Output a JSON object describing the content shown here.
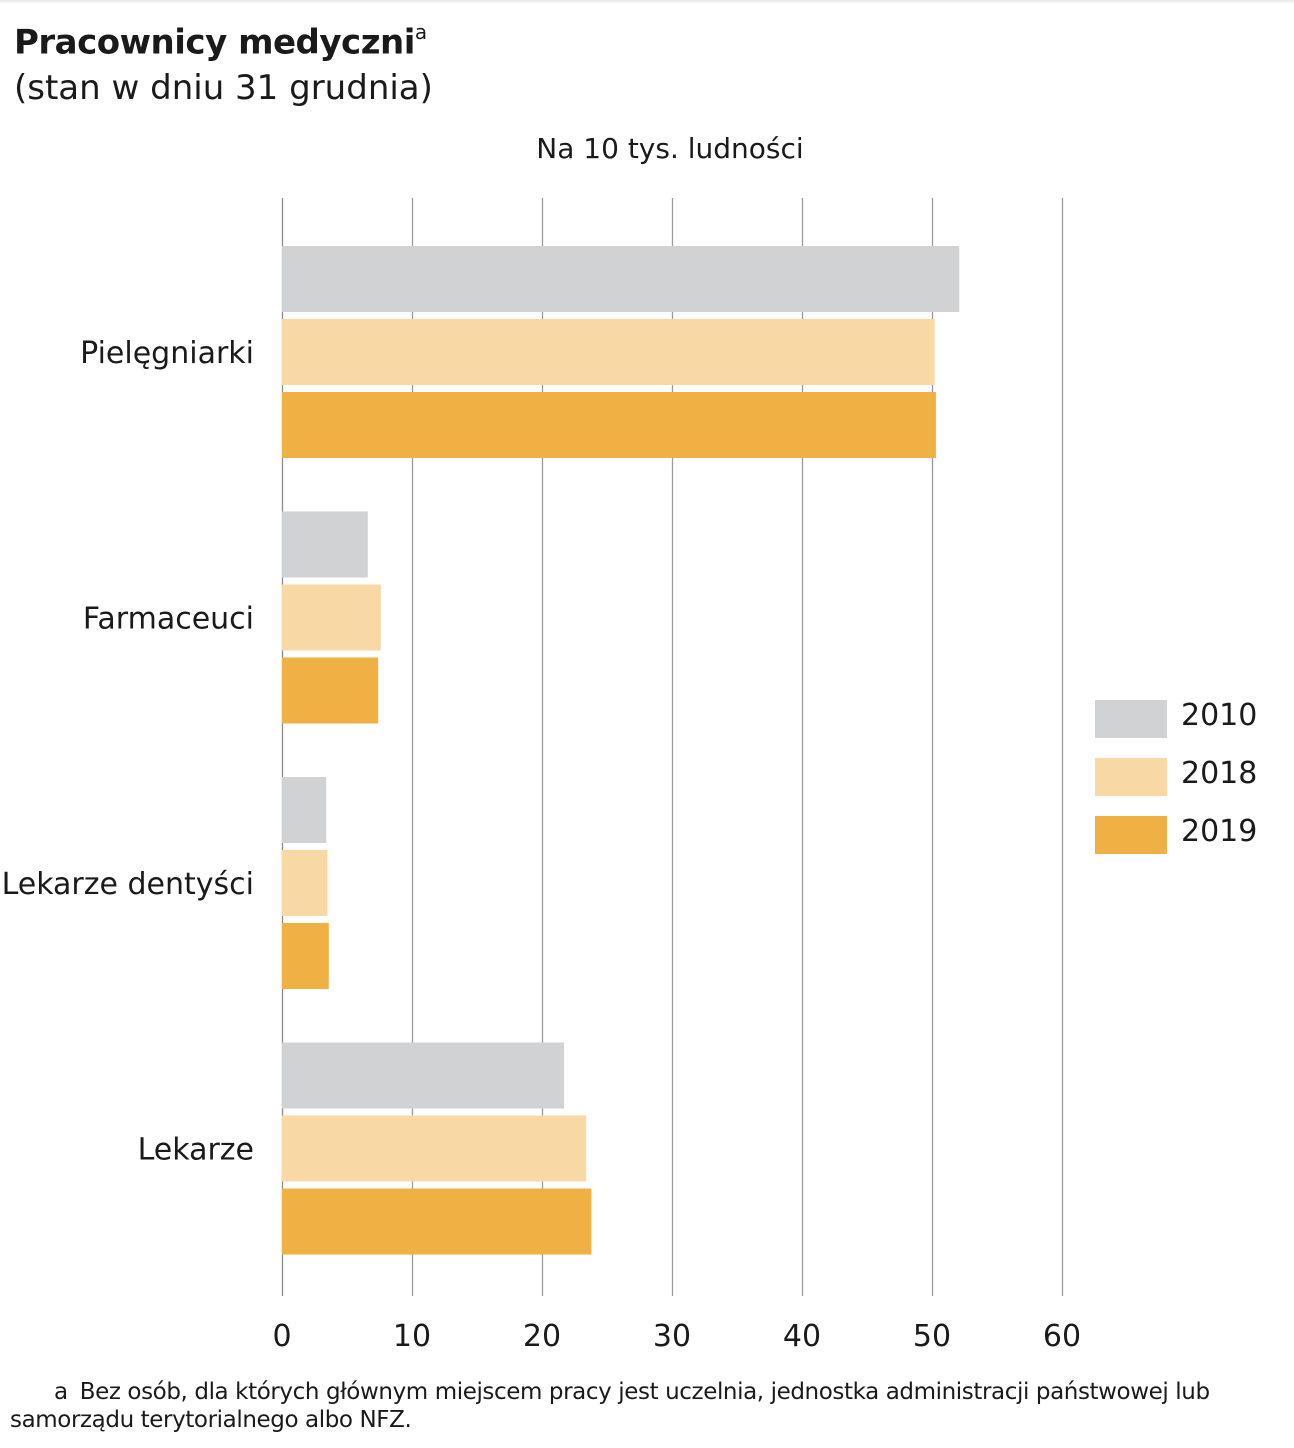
{
  "title": "Pracownicy medyczni",
  "title_note_mark": "a",
  "subtitle": "(stan w dniu 31 grudnia)",
  "footnote": {
    "mark": "a",
    "text": "Bez osób, dla których głównym miejscem pracy jest uczelnia, jednostka administracji państwowej lub samorządu terytorialnego albo NFZ."
  },
  "chart_data": {
    "type": "bar",
    "orientation": "horizontal",
    "title": "Pracownicy medyczni",
    "subtitle": "(stan w dniu 31 grudnia)",
    "xlabel": "Na 10 tys. ludności",
    "ylabel": "",
    "categories": [
      "Pielęgniarki",
      "Farmaceuci",
      "Lekarze dentyści",
      "Lekarze"
    ],
    "series": [
      {
        "name": "2010",
        "color": "#d1d2d4",
        "values": [
          52.1,
          6.6,
          3.4,
          21.7
        ]
      },
      {
        "name": "2018",
        "color": "#f8d9a6",
        "values": [
          50.2,
          7.6,
          3.5,
          23.4
        ]
      },
      {
        "name": "2019",
        "color": "#efb143",
        "values": [
          50.3,
          7.4,
          3.6,
          23.8
        ]
      }
    ],
    "xlim": [
      0,
      60
    ],
    "xticks": [
      0,
      10,
      20,
      30,
      40,
      50,
      60
    ],
    "grid": true,
    "legend": "right"
  }
}
